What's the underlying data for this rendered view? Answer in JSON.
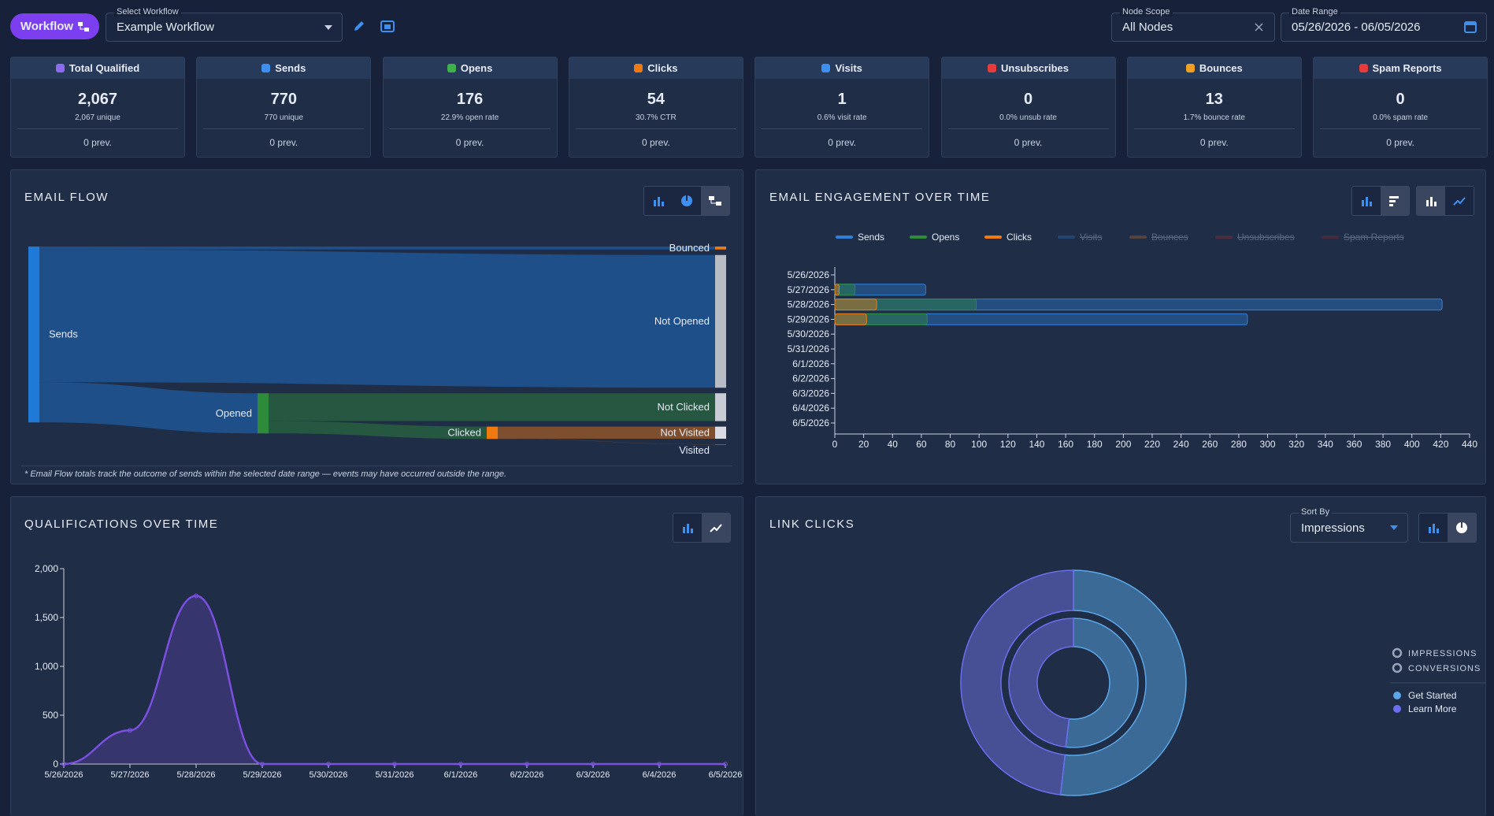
{
  "header": {
    "workflow_button": "Workflow",
    "select_workflow_label": "Select Workflow",
    "select_workflow_value": "Example Workflow",
    "node_scope_label": "Node Scope",
    "node_scope_value": "All Nodes",
    "date_range_label": "Date Range",
    "date_range_value": "05/26/2026 - 06/05/2026"
  },
  "kpis": [
    {
      "title": "Total Qualified",
      "value": "2,067",
      "sub": "2,067 unique",
      "prev": "0 prev."
    },
    {
      "title": "Sends",
      "value": "770",
      "sub": "770 unique",
      "prev": "0 prev."
    },
    {
      "title": "Opens",
      "value": "176",
      "sub": "22.9% open rate",
      "prev": "0 prev."
    },
    {
      "title": "Clicks",
      "value": "54",
      "sub": "30.7% CTR",
      "prev": "0 prev."
    },
    {
      "title": "Visits",
      "value": "1",
      "sub": "0.6% visit rate",
      "prev": "0 prev."
    },
    {
      "title": "Unsubscribes",
      "value": "0",
      "sub": "0.0% unsub rate",
      "prev": "0 prev."
    },
    {
      "title": "Bounces",
      "value": "13",
      "sub": "1.7% bounce rate",
      "prev": "0 prev."
    },
    {
      "title": "Spam Reports",
      "value": "0",
      "sub": "0.0% spam rate",
      "prev": "0 prev."
    }
  ],
  "email_flow": {
    "title": "EMAIL FLOW",
    "note": "* Email Flow totals track the outcome of sends within the selected date range — events may have occurred outside the range.",
    "nodes": [
      {
        "name": "Sends",
        "value": 770,
        "color": "#1e7ad6"
      },
      {
        "name": "Opened",
        "value": 176,
        "color": "#2e8b3a"
      },
      {
        "name": "Clicked",
        "value": 54,
        "color": "#f07a10"
      },
      {
        "name": "Bounced",
        "value": 13,
        "color": "#f07a10"
      },
      {
        "name": "Not Opened",
        "value": 581,
        "color": "#b8bcc4"
      },
      {
        "name": "Not Clicked",
        "value": 122,
        "color": "#c8ccd4"
      },
      {
        "name": "Not Visited",
        "value": 53,
        "color": "#d8dce2"
      },
      {
        "name": "Visited",
        "value": 1,
        "color": "#d8dce2"
      }
    ]
  },
  "engagement": {
    "type": "bar",
    "orientation": "horizontal",
    "title": "EMAIL ENGAGEMENT OVER TIME",
    "categories": [
      "5/26/2026",
      "5/27/2026",
      "5/28/2026",
      "5/29/2026",
      "5/30/2026",
      "5/31/2026",
      "6/1/2026",
      "6/2/2026",
      "6/3/2026",
      "6/4/2026",
      "6/5/2026"
    ],
    "series": [
      {
        "name": "Sends",
        "color": "#2f7fd8",
        "values": [
          0,
          63,
          421,
          286,
          0,
          0,
          0,
          0,
          0,
          0,
          0
        ]
      },
      {
        "name": "Opens",
        "color": "#2e8b3a",
        "values": [
          0,
          14,
          98,
          64,
          0,
          0,
          0,
          0,
          0,
          0,
          0
        ]
      },
      {
        "name": "Clicks",
        "color": "#f07a10",
        "values": [
          0,
          3,
          29,
          22,
          0,
          0,
          0,
          0,
          0,
          0,
          0
        ]
      },
      {
        "name": "Visits",
        "color": "#2c5d9b",
        "hidden": true
      },
      {
        "name": "Bounces",
        "color": "#8a5a35",
        "hidden": true
      },
      {
        "name": "Unsubscribes",
        "color": "#7a2e3a",
        "hidden": true
      },
      {
        "name": "Spam Reports",
        "color": "#6b2b35",
        "hidden": true
      }
    ],
    "xlim": [
      0,
      440
    ],
    "xticks": [
      0,
      20,
      40,
      60,
      80,
      100,
      120,
      140,
      160,
      180,
      200,
      220,
      240,
      260,
      280,
      300,
      320,
      340,
      360,
      380,
      400,
      420,
      440
    ]
  },
  "qualifications": {
    "type": "line",
    "title": "QUALIFICATIONS OVER TIME",
    "categories": [
      "5/26/2026",
      "5/27/2026",
      "5/28/2026",
      "5/29/2026",
      "5/30/2026",
      "5/31/2026",
      "6/1/2026",
      "6/2/2026",
      "6/3/2026",
      "6/4/2026",
      "6/5/2026"
    ],
    "values": [
      0,
      345,
      1722,
      0,
      0,
      0,
      0,
      0,
      0,
      0,
      0
    ],
    "color": "#7b4fe0",
    "ylim": [
      0,
      2000
    ],
    "yticks": [
      0,
      500,
      {
        "value": 1000,
        "label": "1,000"
      },
      {
        "value": 1500,
        "label": "1,500"
      },
      {
        "value": 2000,
        "label": "2,000"
      }
    ]
  },
  "link_clicks": {
    "type": "pie",
    "title": "LINK CLICKS",
    "sort_by_label": "Sort By",
    "sort_by_value": "Impressions",
    "categories": [
      "Get Started",
      "Learn More"
    ],
    "colors": [
      "#5aa7e8",
      "#6b6ef0"
    ],
    "series": [
      {
        "name": "IMPRESSIONS",
        "values": [
          28,
          26
        ]
      },
      {
        "name": "CONVERSIONS",
        "values": [
          27,
          25
        ]
      }
    ]
  }
}
